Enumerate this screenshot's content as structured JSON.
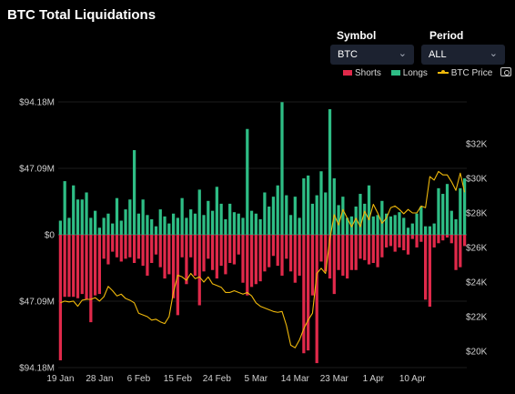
{
  "header": {
    "title": "BTC Total Liquidations"
  },
  "controls": {
    "symbol": {
      "label": "Symbol",
      "value": "BTC"
    },
    "period": {
      "label": "Period",
      "value": "ALL"
    }
  },
  "legend": {
    "shorts": "Shorts",
    "longs": "Longs",
    "price": "BTC Price"
  },
  "colors": {
    "shorts": "#e0294a",
    "longs": "#2ebd85",
    "price": "#f0b90b",
    "background": "#000000"
  },
  "icons": {
    "camera": "camera-icon",
    "chevron": "chevron-down-icon"
  },
  "chart_data": {
    "type": "bar",
    "title": "BTC Total Liquidations",
    "x_tick_labels": [
      "19 Jan",
      "28 Jan",
      "6 Feb",
      "15 Feb",
      "24 Feb",
      "5 Mar",
      "14 Mar",
      "23 Mar",
      "1 Apr",
      "10 Apr"
    ],
    "y_left_ticks": [
      "$94.18M",
      "$47.09M",
      "$0",
      "$47.09M",
      "$94.18M"
    ],
    "y_left_range": [
      -94.18,
      94.18
    ],
    "y_left_unit": "M",
    "y_right_ticks": [
      "$32K",
      "$30K",
      "$28K",
      "$26K",
      "$24K",
      "$22K",
      "$20K"
    ],
    "y_right_range": [
      19500,
      32000
    ],
    "grid": true,
    "legend_position": "top-right",
    "start_date": "19 Jan",
    "series": [
      {
        "name": "Longs",
        "values": [
          10,
          38,
          12,
          35,
          25,
          25,
          30,
          12,
          17,
          5,
          12,
          15,
          8,
          26,
          10,
          18,
          25,
          60,
          15,
          25,
          14,
          11,
          6,
          18,
          13,
          8,
          15,
          12,
          26,
          12,
          18,
          15,
          32,
          14,
          24,
          17,
          34,
          22,
          11,
          22,
          16,
          15,
          12,
          75,
          17,
          15,
          11,
          30,
          20,
          27,
          35,
          94,
          28,
          14,
          27,
          12,
          40,
          42,
          22,
          28,
          45,
          30,
          89,
          40,
          21,
          27,
          12,
          13,
          20,
          29,
          22,
          35,
          13,
          14,
          24,
          15,
          13,
          14,
          16,
          12,
          5,
          8,
          15,
          20,
          6,
          6,
          8,
          33,
          29,
          36,
          17,
          11,
          33,
          40
        ]
      },
      {
        "name": "Shorts",
        "values": [
          89,
          44,
          44,
          44,
          45,
          42,
          46,
          62,
          43,
          42,
          17,
          21,
          12,
          16,
          19,
          17,
          16,
          20,
          17,
          22,
          29,
          20,
          14,
          23,
          31,
          28,
          45,
          57,
          16,
          35,
          16,
          29,
          50,
          26,
          17,
          25,
          31,
          22,
          28,
          20,
          21,
          14,
          34,
          43,
          37,
          35,
          33,
          26,
          23,
          15,
          22,
          29,
          17,
          26,
          34,
          29,
          84,
          82,
          43,
          91,
          19,
          26,
          31,
          42,
          25,
          29,
          31,
          25,
          25,
          17,
          18,
          21,
          20,
          23,
          16,
          9,
          8,
          12,
          9,
          11,
          14,
          3,
          9,
          5,
          46,
          51,
          9,
          6,
          4,
          2,
          6,
          25,
          23,
          8
        ]
      },
      {
        "name": "BTC Price",
        "values": [
          22800,
          22900,
          22850,
          22900,
          22600,
          22950,
          23000,
          23000,
          23100,
          22900,
          23150,
          23750,
          23500,
          23200,
          23300,
          23050,
          22950,
          22800,
          22200,
          22100,
          22000,
          21800,
          21850,
          21700,
          21600,
          22000,
          23400,
          24400,
          24300,
          24100,
          24500,
          24200,
          24300,
          24000,
          24300,
          23900,
          23800,
          23700,
          23400,
          23400,
          23500,
          23400,
          23300,
          23400,
          23200,
          22800,
          22600,
          22500,
          22400,
          22300,
          22250,
          22300,
          21500,
          20350,
          20200,
          20650,
          21300,
          21800,
          22200,
          24500,
          24800,
          24500,
          26500,
          27900,
          27300,
          28200,
          27700,
          27200,
          27700,
          27200,
          28100,
          27600,
          28500,
          28000,
          27400,
          27700,
          28300,
          28400,
          28200,
          27950,
          28200,
          28000,
          28000,
          28400,
          28300,
          30100,
          29900,
          30400,
          30200,
          30200,
          29800,
          29300,
          30300,
          29200
        ]
      }
    ]
  }
}
